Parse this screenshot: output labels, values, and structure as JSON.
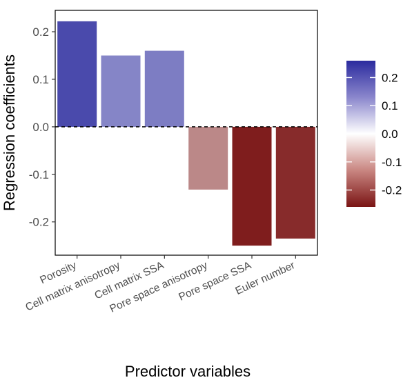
{
  "chart_data": {
    "type": "bar",
    "title": "",
    "xlabel": "Predictor variables",
    "ylabel": "Regression coefficients",
    "categories": [
      "Porosity",
      "Cell matrix anisotropy",
      "Cell matrix SSA",
      "Pore space anisotropy",
      "Pore space SSA",
      "Euler number"
    ],
    "values": [
      0.222,
      0.15,
      0.16,
      -0.132,
      -0.25,
      -0.235
    ],
    "ylim": [
      -0.27,
      0.245
    ],
    "yticks": [
      -0.2,
      -0.1,
      0.0,
      0.1,
      0.2
    ],
    "ytick_labels": [
      "-0.2",
      "-0.1",
      "0.0",
      "0.1",
      "0.2"
    ],
    "grid": false,
    "reference_line": {
      "y": 0.0,
      "style": "dashed"
    },
    "legend": {
      "type": "colorbar",
      "placement": "right",
      "range": [
        -0.26,
        0.26
      ],
      "ticks": [
        0.2,
        0.1,
        0.0,
        -0.1,
        -0.2
      ],
      "tick_labels": [
        "0.2",
        "0.1",
        "0.0",
        "-0.1",
        "-0.2"
      ],
      "colors": {
        "low": "#7a1414",
        "mid": "#ffffff",
        "high": "#2b2b9e"
      }
    }
  }
}
